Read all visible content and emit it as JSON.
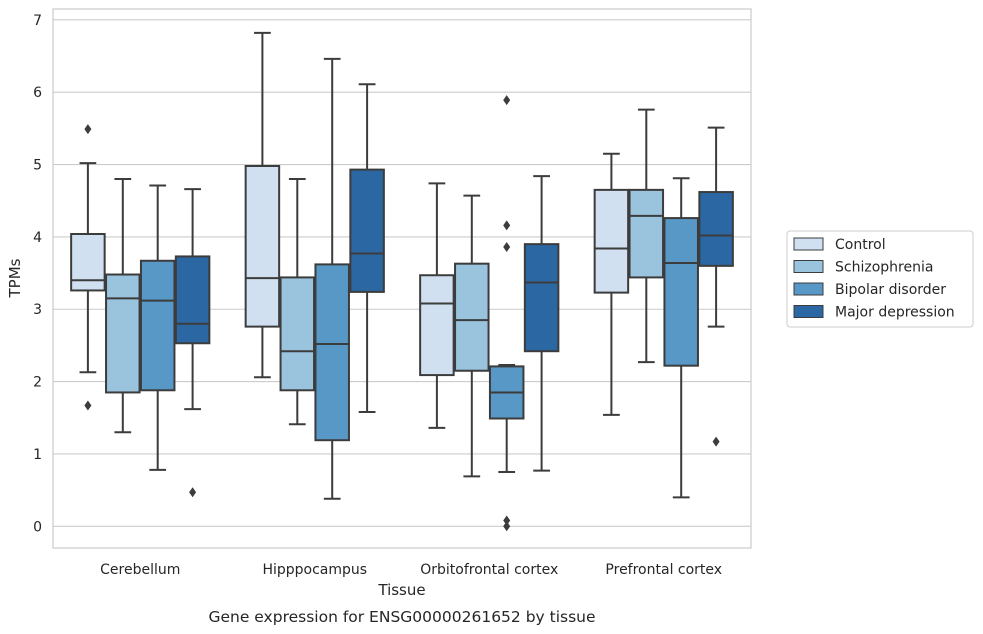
{
  "chart_data": {
    "type": "boxplot",
    "title": "",
    "caption": "Gene expression for ENSG00000261652 by tissue",
    "xlabel": "Tissue",
    "ylabel": "TPMs",
    "ylim": [
      -0.3,
      7.15
    ],
    "yticks": [
      0,
      1,
      2,
      3,
      4,
      5,
      6,
      7
    ],
    "grid": "horizontal",
    "legend_position": "right",
    "categories": [
      "Cerebellum",
      "Hipppocampus",
      "Orbitofrontal cortex",
      "Prefrontal cortex"
    ],
    "series": [
      {
        "name": "Control",
        "color": "#d0e0f0",
        "boxes": [
          {
            "whisker_low": 2.13,
            "q1": 3.26,
            "median": 3.4,
            "q3": 4.04,
            "whisker_high": 5.02,
            "outliers": [
              5.49,
              1.67
            ]
          },
          {
            "whisker_low": 2.06,
            "q1": 2.76,
            "median": 3.43,
            "q3": 4.98,
            "whisker_high": 6.82,
            "outliers": []
          },
          {
            "whisker_low": 1.36,
            "q1": 2.09,
            "median": 3.08,
            "q3": 3.47,
            "whisker_high": 4.74,
            "outliers": []
          },
          {
            "whisker_low": 1.54,
            "q1": 3.23,
            "median": 3.84,
            "q3": 4.65,
            "whisker_high": 5.15,
            "outliers": []
          }
        ]
      },
      {
        "name": "Schizophrenia",
        "color": "#9ac3de",
        "boxes": [
          {
            "whisker_low": 1.3,
            "q1": 1.85,
            "median": 3.15,
            "q3": 3.48,
            "whisker_high": 4.8,
            "outliers": []
          },
          {
            "whisker_low": 1.41,
            "q1": 1.88,
            "median": 2.42,
            "q3": 3.44,
            "whisker_high": 4.8,
            "outliers": []
          },
          {
            "whisker_low": 0.69,
            "q1": 2.15,
            "median": 2.85,
            "q3": 3.63,
            "whisker_high": 4.57,
            "outliers": []
          },
          {
            "whisker_low": 2.27,
            "q1": 3.44,
            "median": 4.29,
            "q3": 4.65,
            "whisker_high": 5.76,
            "outliers": []
          }
        ]
      },
      {
        "name": "Bipolar disorder",
        "color": "#5898c6",
        "boxes": [
          {
            "whisker_low": 0.78,
            "q1": 1.88,
            "median": 3.12,
            "q3": 3.67,
            "whisker_high": 4.71,
            "outliers": []
          },
          {
            "whisker_low": 0.38,
            "q1": 1.19,
            "median": 2.52,
            "q3": 3.62,
            "whisker_high": 6.46,
            "outliers": []
          },
          {
            "whisker_low": 0.75,
            "q1": 1.49,
            "median": 1.85,
            "q3": 2.21,
            "whisker_high": 2.23,
            "outliers": [
              5.89,
              4.16,
              3.86,
              0.08,
              0.0
            ]
          },
          {
            "whisker_low": 0.4,
            "q1": 2.22,
            "median": 3.64,
            "q3": 4.26,
            "whisker_high": 4.81,
            "outliers": []
          }
        ]
      },
      {
        "name": "Major depression",
        "color": "#2b67a3",
        "boxes": [
          {
            "whisker_low": 1.62,
            "q1": 2.53,
            "median": 2.8,
            "q3": 3.73,
            "whisker_high": 4.66,
            "outliers": [
              0.47
            ]
          },
          {
            "whisker_low": 1.58,
            "q1": 3.24,
            "median": 3.77,
            "q3": 4.93,
            "whisker_high": 6.11,
            "outliers": []
          },
          {
            "whisker_low": 0.77,
            "q1": 2.42,
            "median": 3.37,
            "q3": 3.9,
            "whisker_high": 4.84,
            "outliers": []
          },
          {
            "whisker_low": 2.76,
            "q1": 3.6,
            "median": 4.02,
            "q3": 4.62,
            "whisker_high": 5.51,
            "outliers": [
              1.17
            ]
          }
        ]
      }
    ]
  }
}
